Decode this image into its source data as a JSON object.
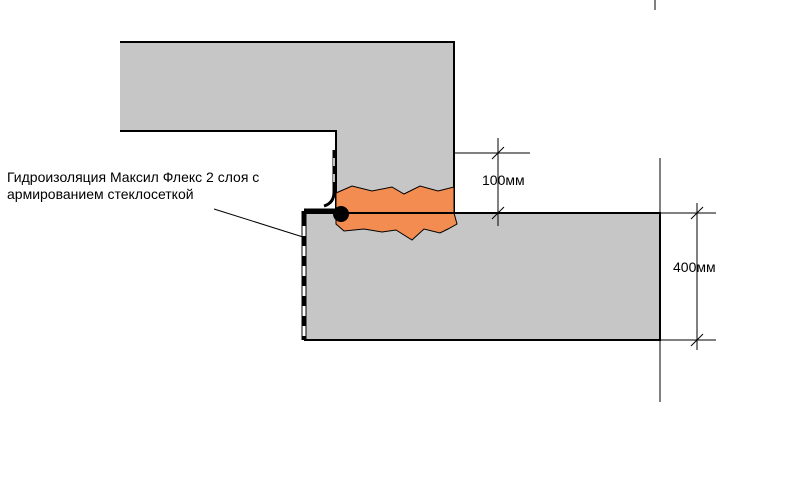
{
  "annotation": {
    "line1": "Гидроизоляция Максил Флекс 2 слоя с",
    "line2": "армированием стеклосеткой"
  },
  "dimensions": {
    "joint_gap": "100мм",
    "slab_thickness": "400мм"
  },
  "colors": {
    "concrete": "#c6c6c6",
    "sealant": "#f28c50",
    "outline": "#000000",
    "background": "#ffffff"
  }
}
